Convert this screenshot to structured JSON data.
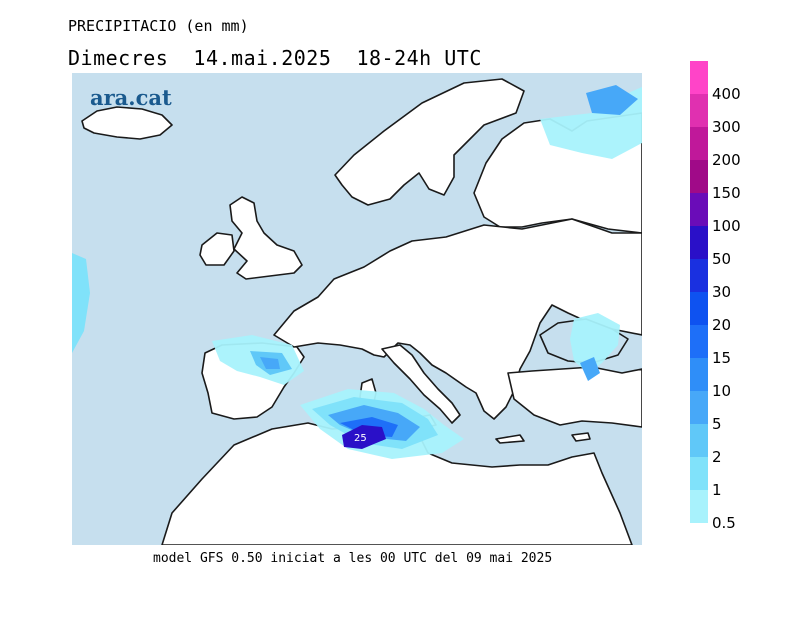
{
  "header": {
    "title": "PRECIPITACIO (en mm)",
    "subtitle": "Dimecres  14.mai.2025  18-24h UTC"
  },
  "map": {
    "logo": "ara.cat",
    "peak_label": "25",
    "colors": {
      "sea": "#c6dfee",
      "land": "#ffffff",
      "coast": "#1a1a1a"
    }
  },
  "legend": {
    "labels": [
      "400",
      "300",
      "200",
      "150",
      "100",
      "50",
      "30",
      "20",
      "15",
      "10",
      "5",
      "2",
      "1",
      "0.5"
    ],
    "colors": [
      "#ff44c8",
      "#e030b0",
      "#c0189a",
      "#a00a88",
      "#6a0cb8",
      "#2a10c8",
      "#1a30e0",
      "#0e52f0",
      "#1e6ff8",
      "#2f8ef8",
      "#47a8f8",
      "#60c8f8",
      "#80e2fa",
      "#a8f2fc"
    ]
  },
  "footer": {
    "text": "model GFS 0.50 iniciat a les 00 UTC del 09 mai 2025"
  }
}
